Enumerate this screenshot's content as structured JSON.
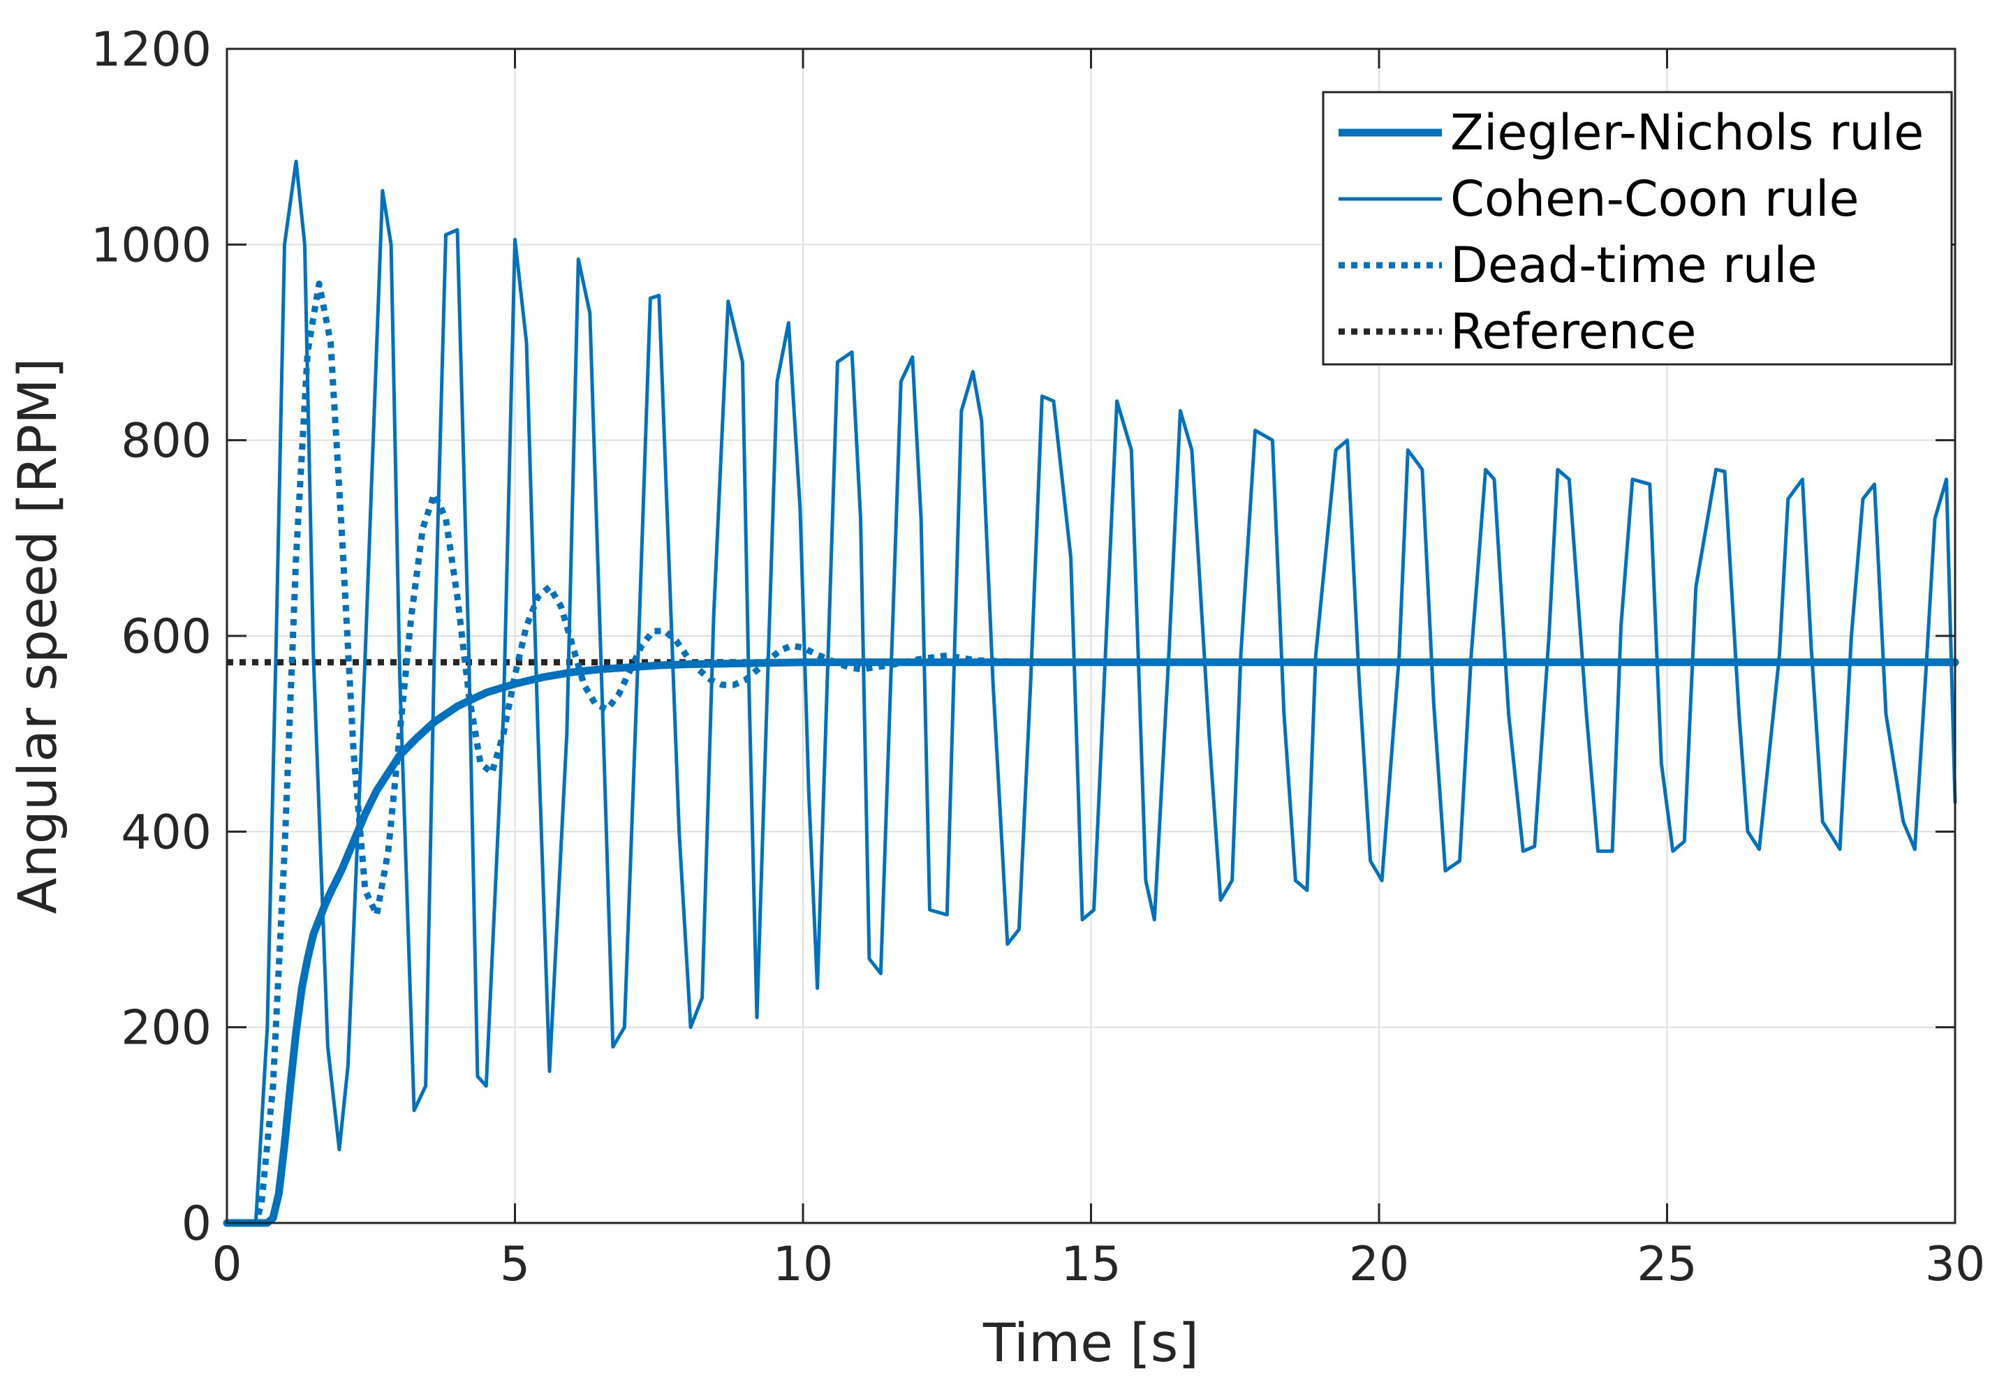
{
  "chart_data": {
    "type": "line",
    "xlabel": "Time [s]",
    "ylabel": "Angular speed [RPM]",
    "xlim": [
      0,
      30
    ],
    "ylim": [
      0,
      1200
    ],
    "xticks": [
      0,
      5,
      10,
      15,
      20,
      25,
      30
    ],
    "yticks": [
      0,
      200,
      400,
      600,
      800,
      1000,
      1200
    ],
    "grid": true,
    "legend_position": "top-right",
    "reference_value": 573,
    "series": [
      {
        "name": "Ziegler-Nichols rule",
        "style": "thick-solid",
        "color": "#0072BD",
        "x": [
          0,
          0.7,
          0.8,
          0.9,
          1.0,
          1.1,
          1.2,
          1.3,
          1.4,
          1.5,
          1.6,
          1.7,
          1.8,
          1.9,
          2.0,
          2.2,
          2.4,
          2.6,
          2.8,
          3.0,
          3.3,
          3.6,
          4.0,
          4.5,
          5.0,
          5.5,
          6.0,
          6.5,
          7.0,
          7.5,
          8.0,
          9.0,
          10.0,
          12.0,
          15.0,
          20.0,
          25.0,
          30.0
        ],
        "y": [
          0,
          0,
          5,
          30,
          80,
          140,
          195,
          240,
          270,
          295,
          310,
          325,
          338,
          350,
          362,
          390,
          418,
          442,
          460,
          478,
          496,
          512,
          528,
          542,
          551,
          558,
          563,
          566,
          568,
          570,
          571,
          572,
          573,
          573,
          573,
          573,
          573,
          573
        ]
      },
      {
        "name": "Cohen-Coon rule",
        "style": "thin-solid",
        "color": "#0072BD",
        "x": [
          0,
          0.5,
          0.7,
          0.85,
          1.0,
          1.2,
          1.35,
          1.5,
          1.75,
          1.95,
          2.1,
          2.4,
          2.7,
          2.85,
          3.0,
          3.25,
          3.45,
          3.6,
          3.8,
          4.0,
          4.2,
          4.35,
          4.5,
          4.8,
          5.0,
          5.2,
          5.4,
          5.6,
          5.9,
          6.1,
          6.3,
          6.55,
          6.7,
          6.9,
          7.15,
          7.35,
          7.5,
          7.85,
          8.05,
          8.25,
          8.45,
          8.7,
          8.95,
          9.05,
          9.2,
          9.55,
          9.75,
          9.95,
          10.1,
          10.25,
          10.6,
          10.85,
          11.0,
          11.15,
          11.35,
          11.7,
          11.9,
          12.05,
          12.2,
          12.5,
          12.75,
          12.95,
          13.1,
          13.3,
          13.55,
          13.75,
          13.95,
          14.15,
          14.35,
          14.65,
          14.85,
          15.05,
          15.25,
          15.45,
          15.7,
          15.95,
          16.1,
          16.35,
          16.55,
          16.75,
          17.05,
          17.25,
          17.45,
          17.6,
          17.85,
          18.15,
          18.35,
          18.55,
          18.75,
          18.9,
          19.25,
          19.45,
          19.65,
          19.85,
          20.05,
          20.35,
          20.5,
          20.75,
          20.95,
          21.15,
          21.4,
          21.6,
          21.85,
          22.0,
          22.25,
          22.5,
          22.7,
          22.95,
          23.1,
          23.3,
          23.6,
          23.8,
          24.05,
          24.2,
          24.4,
          24.7,
          24.9,
          25.1,
          25.3,
          25.5,
          25.85,
          26.0,
          26.25,
          26.4,
          26.6,
          26.95,
          27.1,
          27.35,
          27.5,
          27.7,
          28.0,
          28.2,
          28.4,
          28.6,
          28.8,
          29.1,
          29.3,
          29.5,
          29.65,
          29.85,
          30.0
        ],
        "y": [
          0,
          0,
          200,
          580,
          1000,
          1085,
          1000,
          580,
          180,
          75,
          160,
          580,
          1055,
          1000,
          560,
          115,
          140,
          580,
          1010,
          1015,
          580,
          150,
          140,
          520,
          1005,
          900,
          500,
          155,
          500,
          985,
          930,
          470,
          180,
          200,
          600,
          945,
          948,
          400,
          200,
          230,
          620,
          942,
          880,
          580,
          210,
          860,
          920,
          730,
          440,
          240,
          880,
          890,
          720,
          270,
          255,
          860,
          885,
          720,
          320,
          315,
          830,
          870,
          820,
          550,
          285,
          300,
          550,
          845,
          840,
          680,
          310,
          320,
          580,
          840,
          790,
          350,
          310,
          580,
          830,
          790,
          500,
          330,
          350,
          580,
          810,
          800,
          520,
          350,
          340,
          580,
          790,
          800,
          560,
          370,
          350,
          580,
          790,
          770,
          530,
          360,
          370,
          580,
          770,
          760,
          520,
          380,
          385,
          600,
          770,
          760,
          520,
          380,
          380,
          610,
          760,
          755,
          470,
          380,
          390,
          650,
          770,
          768,
          520,
          400,
          382,
          580,
          740,
          760,
          590,
          410,
          382,
          600,
          740,
          755,
          520,
          410,
          382,
          570,
          720,
          760,
          430
        ],
        "note": "approximate trace of the oscillating response"
      },
      {
        "name": "Dead-time rule",
        "style": "dotted",
        "color": "#0072BD",
        "x": [
          0,
          0.5,
          0.6,
          0.8,
          1.0,
          1.2,
          1.4,
          1.6,
          1.8,
          2.0,
          2.2,
          2.4,
          2.6,
          2.8,
          3.0,
          3.2,
          3.4,
          3.6,
          3.8,
          4.0,
          4.2,
          4.4,
          4.6,
          4.8,
          5.0,
          5.2,
          5.4,
          5.6,
          5.8,
          6.0,
          6.2,
          6.4,
          6.6,
          6.8,
          7.0,
          7.2,
          7.4,
          7.6,
          7.8,
          8.0,
          8.2,
          8.4,
          8.6,
          8.8,
          9.0,
          9.2,
          9.4,
          9.6,
          9.8,
          10.0,
          10.2,
          10.4,
          10.6,
          10.8,
          11.0,
          11.5,
          12.0,
          12.5,
          13.0,
          14.0,
          15.0,
          20.0,
          30.0
        ],
        "y": [
          0,
          0,
          20,
          140,
          380,
          680,
          890,
          960,
          900,
          700,
          480,
          340,
          315,
          380,
          500,
          620,
          710,
          745,
          720,
          640,
          540,
          470,
          460,
          500,
          560,
          610,
          640,
          650,
          630,
          590,
          550,
          530,
          525,
          540,
          565,
          590,
          605,
          605,
          595,
          578,
          565,
          555,
          550,
          550,
          555,
          565,
          575,
          585,
          590,
          588,
          582,
          577,
          572,
          568,
          566,
          570,
          576,
          580,
          575,
          573,
          573,
          573,
          573
        ]
      },
      {
        "name": "Reference",
        "style": "dotted-black",
        "color": "#262626",
        "x": [
          0,
          30
        ],
        "y": [
          573,
          573
        ]
      }
    ]
  }
}
